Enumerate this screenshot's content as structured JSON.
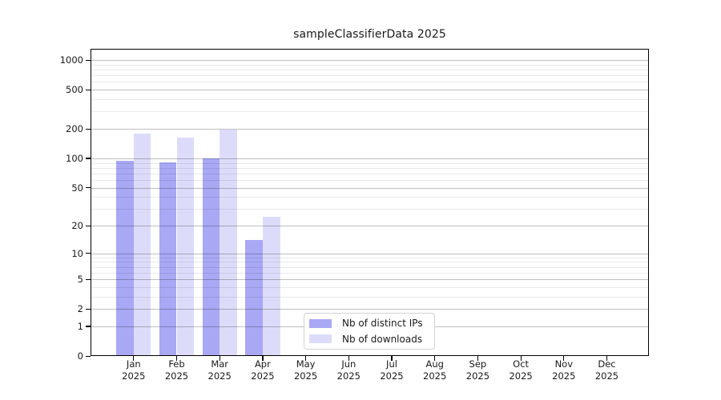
{
  "chart_data": {
    "type": "bar",
    "title": "sampleClassifierData 2025",
    "y_scale": "log10(1+x)",
    "ylim": [
      0,
      1300
    ],
    "grid": true,
    "legend_position": "bottom-center",
    "year": "2025",
    "months": [
      "Jan",
      "Feb",
      "Mar",
      "Apr",
      "May",
      "Jun",
      "Jul",
      "Aug",
      "Sep",
      "Oct",
      "Nov",
      "Dec"
    ],
    "y_ticks": [
      0,
      1,
      2,
      5,
      10,
      20,
      50,
      100,
      200,
      500,
      1000
    ],
    "y_minor_ticks": [
      3,
      4,
      6,
      7,
      8,
      9,
      30,
      40,
      60,
      70,
      80,
      90,
      300,
      400,
      600,
      700,
      800,
      900
    ],
    "series": [
      {
        "name": "Nb of distinct IPs",
        "color": "#a8a8f4",
        "values": [
          95,
          91,
          100,
          14,
          0,
          0,
          0,
          0,
          0,
          0,
          0,
          0
        ]
      },
      {
        "name": "Nb of downloads",
        "color": "#dcdcfa",
        "values": [
          178,
          162,
          195,
          25,
          0,
          0,
          0,
          0,
          0,
          0,
          0,
          0
        ]
      }
    ]
  }
}
